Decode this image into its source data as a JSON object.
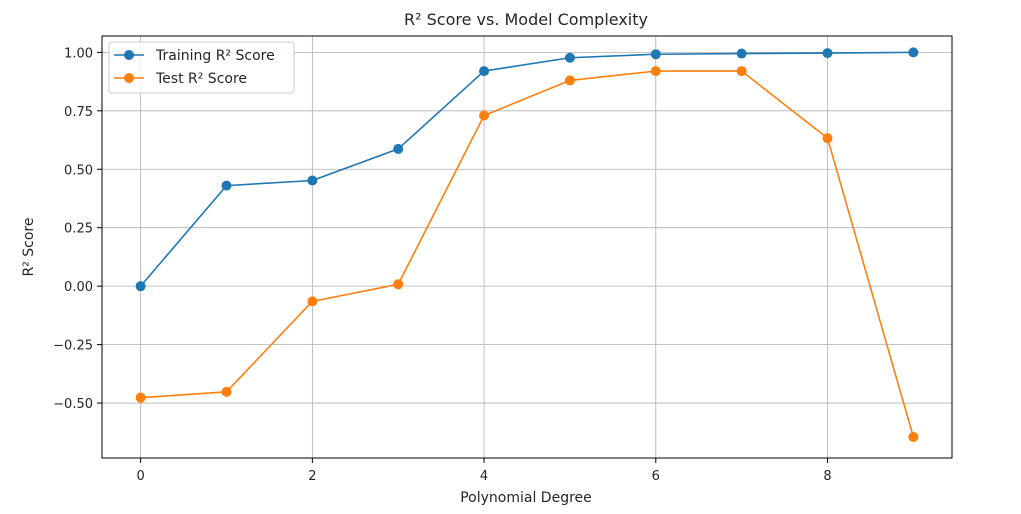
{
  "chart_data": {
    "type": "line",
    "title": "R² Score vs. Model Complexity",
    "xlabel": "Polynomial Degree",
    "ylabel": "R² Score",
    "x": [
      0,
      1,
      2,
      3,
      4,
      5,
      6,
      7,
      8,
      9
    ],
    "xticks": [
      0,
      2,
      4,
      6,
      8
    ],
    "yticks": [
      -0.5,
      -0.25,
      0.0,
      0.25,
      0.5,
      0.75,
      1.0
    ],
    "ytick_labels": [
      "−0.50",
      "−0.25",
      "0.00",
      "0.25",
      "0.50",
      "0.75",
      "1.00"
    ],
    "xlim": [
      -0.45,
      9.45
    ],
    "ylim": [
      -0.735,
      1.07
    ],
    "grid": true,
    "legend_position": "top-left",
    "series": [
      {
        "name": "Training R² Score",
        "color": "#1f77b4",
        "marker": "circle",
        "values": [
          0.0,
          0.43,
          0.452,
          0.587,
          0.92,
          0.977,
          0.992,
          0.995,
          0.997,
          1.0
        ]
      },
      {
        "name": "Test R² Score",
        "color": "#ff7f0e",
        "marker": "circle",
        "values": [
          -0.477,
          -0.452,
          -0.065,
          0.008,
          0.73,
          0.88,
          0.92,
          0.92,
          0.633,
          -0.645
        ]
      }
    ]
  }
}
